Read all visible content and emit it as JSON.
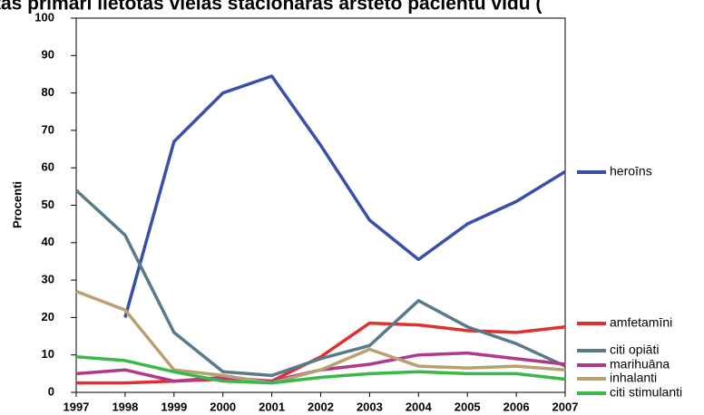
{
  "chart_data": {
    "type": "line",
    "title": "tas primāri lietotās vielas stacionārās ārstēto pacientu vidū (",
    "ylabel": "Procenti",
    "x": [
      1997,
      1998,
      1999,
      2000,
      2001,
      2002,
      2003,
      2004,
      2005,
      2006,
      2007
    ],
    "xlim": [
      1997,
      2007
    ],
    "xticks": [
      1997,
      1998,
      1999,
      2000,
      2001,
      2002,
      2003,
      2004,
      2005,
      2006,
      2007
    ],
    "ylim": [
      0,
      100
    ],
    "yticks": [
      0,
      10,
      20,
      30,
      40,
      50,
      60,
      70,
      80,
      90,
      100
    ],
    "grid": false,
    "legend": "right",
    "series": [
      {
        "name": "heroīns",
        "color": "#3a4fa8",
        "values": [
          null,
          20,
          67,
          80,
          84.5,
          66,
          46,
          35.5,
          45,
          51,
          59
        ]
      },
      {
        "name": "amfetamīni",
        "color": "#e03030",
        "values": [
          2.5,
          2.5,
          3,
          3.5,
          3,
          9.5,
          18.5,
          18,
          16.5,
          16,
          17.5
        ]
      },
      {
        "name": "citi opiāti",
        "color": "#5a7a8a",
        "values": [
          54,
          42,
          16,
          5.5,
          4.5,
          9,
          12.5,
          24.5,
          17.5,
          13,
          7
        ]
      },
      {
        "name": "marihuāna",
        "color": "#b03a8a",
        "values": [
          5,
          6,
          3,
          4,
          3,
          6,
          7.5,
          10,
          10.5,
          9,
          7.5
        ]
      },
      {
        "name": "inhalanti",
        "color": "#b8a070",
        "values": [
          27,
          22,
          6,
          4.5,
          2.5,
          6,
          11.5,
          7,
          6.5,
          7,
          6
        ]
      },
      {
        "name": "citi stimulanti",
        "color": "#3ab84a",
        "values": [
          9.5,
          8.5,
          5.5,
          3,
          2.5,
          4,
          5,
          5.5,
          5,
          5,
          3.5
        ]
      }
    ]
  }
}
